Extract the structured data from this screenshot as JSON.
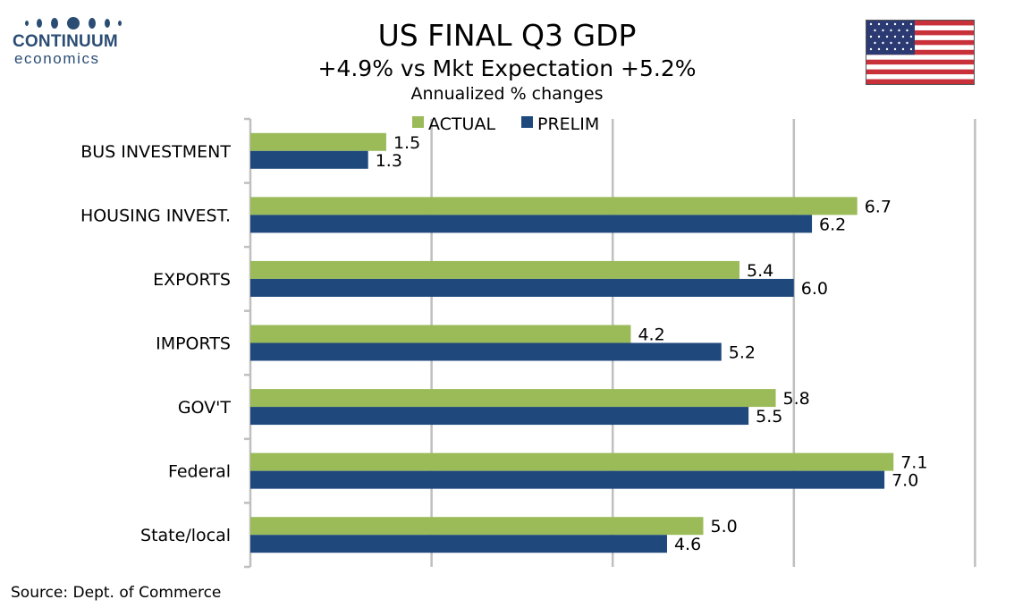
{
  "brand": {
    "name": "CONTINUUM",
    "sub": "economics",
    "color": "#2b4d74"
  },
  "flag_icon": "us-flag-icon",
  "source": "Source: Dept. of Commerce",
  "chart_data": {
    "type": "bar",
    "orientation": "horizontal",
    "title": "US FINAL Q3 GDP",
    "subtitle": "+4.9% vs Mkt Expectation +5.2%",
    "subtitle2": "Annualized % changes",
    "categories": [
      "BUS INVESTMENT",
      "HOUSING INVEST.",
      "EXPORTS",
      "IMPORTS",
      "GOV'T",
      "Federal",
      "State/local"
    ],
    "series": [
      {
        "name": "ACTUAL",
        "color": "#9bbb59",
        "values": [
          1.5,
          6.7,
          5.4,
          4.2,
          5.8,
          7.1,
          5.0
        ]
      },
      {
        "name": "PRELIM",
        "color": "#1f497d",
        "values": [
          1.3,
          6.2,
          6.0,
          5.2,
          5.5,
          7.0,
          4.6
        ]
      }
    ],
    "xlim": [
      0,
      8
    ],
    "grid": true,
    "legend": "top-center",
    "data_labels": true
  }
}
